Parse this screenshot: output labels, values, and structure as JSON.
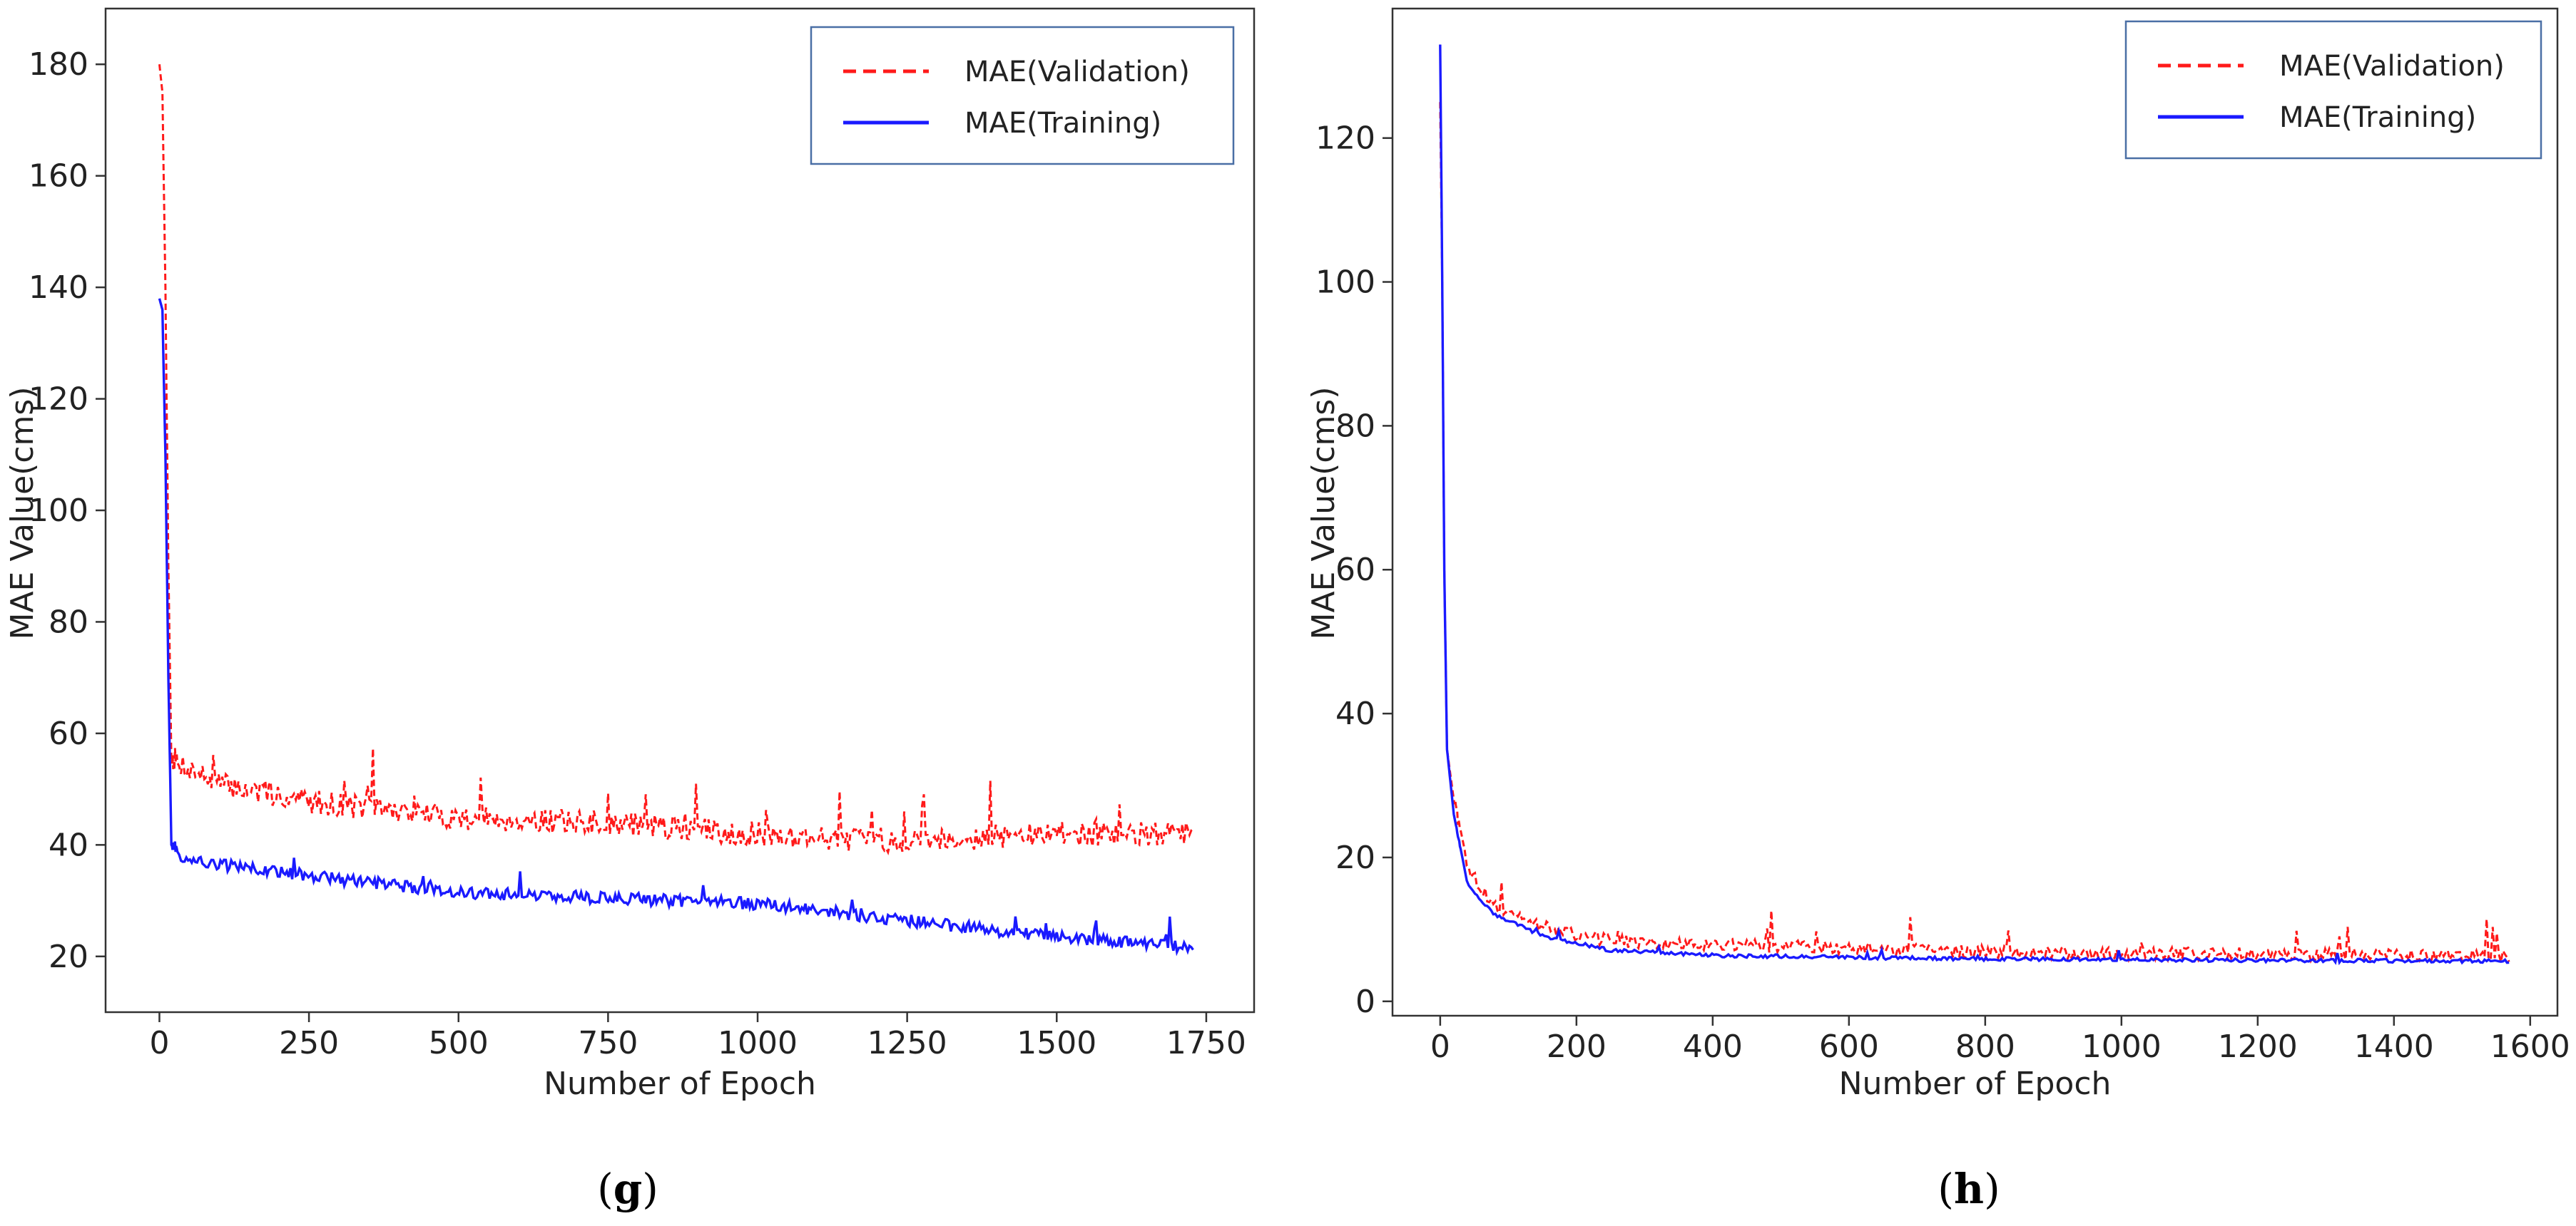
{
  "colors": {
    "validation": "#ff1a1a",
    "training": "#1a1aff",
    "frame": "#333333",
    "legend_border": "#4a6fa5"
  },
  "chart_data": [
    {
      "panel": "g",
      "type": "line",
      "xlabel": "Number of Epoch",
      "ylabel": "MAE Value(cms)",
      "xlim": [
        -90,
        1830
      ],
      "ylim": [
        10,
        190
      ],
      "xticks": [
        0,
        250,
        500,
        750,
        1000,
        1250,
        1500,
        1750
      ],
      "yticks": [
        20,
        40,
        60,
        80,
        100,
        120,
        140,
        160,
        180
      ],
      "legend_position": "top-right",
      "epochs": 1730,
      "series": [
        {
          "name": "MAE(Validation)",
          "style": "dashed",
          "color": "#ff1a1a",
          "profile": [
            [
              0,
              180
            ],
            [
              5,
              175
            ],
            [
              10,
              140
            ],
            [
              15,
              90
            ],
            [
              20,
              55
            ],
            [
              30,
              54
            ],
            [
              100,
              50
            ],
            [
              250,
              47
            ],
            [
              500,
              44
            ],
            [
              750,
              43
            ],
            [
              1000,
              41
            ],
            [
              1200,
              40
            ],
            [
              1250,
              40
            ],
            [
              1500,
              41
            ],
            [
              1730,
              41
            ]
          ]
        },
        {
          "name": "MAE(Training)",
          "style": "solid",
          "color": "#1a1aff",
          "profile": [
            [
              0,
              138
            ],
            [
              5,
              136
            ],
            [
              10,
              110
            ],
            [
              15,
              70
            ],
            [
              20,
              40
            ],
            [
              40,
              37
            ],
            [
              100,
              36
            ],
            [
              250,
              34
            ],
            [
              500,
              31
            ],
            [
              750,
              30
            ],
            [
              1000,
              29
            ],
            [
              1250,
              26
            ],
            [
              1500,
              23
            ],
            [
              1730,
              21
            ]
          ]
        }
      ]
    },
    {
      "panel": "h",
      "type": "line",
      "xlabel": "Number of Epoch",
      "ylabel": "MAE Value(cms)",
      "xlim": [
        -70,
        1640
      ],
      "ylim": [
        -2,
        138
      ],
      "xticks": [
        0,
        200,
        400,
        600,
        800,
        1000,
        1200,
        1400,
        1600
      ],
      "yticks": [
        0,
        20,
        40,
        60,
        80,
        100,
        120
      ],
      "legend_position": "top-right",
      "epochs": 1570,
      "series": [
        {
          "name": "MAE(Validation)",
          "style": "dashed",
          "color": "#ff1a1a",
          "profile": [
            [
              0,
              125
            ],
            [
              3,
              100
            ],
            [
              6,
              60
            ],
            [
              10,
              35
            ],
            [
              20,
              28
            ],
            [
              40,
              18
            ],
            [
              80,
              13
            ],
            [
              150,
              10
            ],
            [
              250,
              8
            ],
            [
              400,
              7.5
            ],
            [
              600,
              7
            ],
            [
              800,
              6.5
            ],
            [
              1000,
              6.3
            ],
            [
              1200,
              6.2
            ],
            [
              1570,
              6
            ]
          ]
        },
        {
          "name": "MAE(Training)",
          "style": "solid",
          "color": "#1a1aff",
          "profile": [
            [
              0,
              133
            ],
            [
              3,
              100
            ],
            [
              6,
              60
            ],
            [
              10,
              35
            ],
            [
              20,
              26
            ],
            [
              40,
              16
            ],
            [
              80,
              12
            ],
            [
              150,
              9
            ],
            [
              250,
              7
            ],
            [
              400,
              6.3
            ],
            [
              600,
              6
            ],
            [
              800,
              5.8
            ],
            [
              1000,
              5.7
            ],
            [
              1200,
              5.6
            ],
            [
              1570,
              5.5
            ]
          ]
        }
      ]
    }
  ]
}
